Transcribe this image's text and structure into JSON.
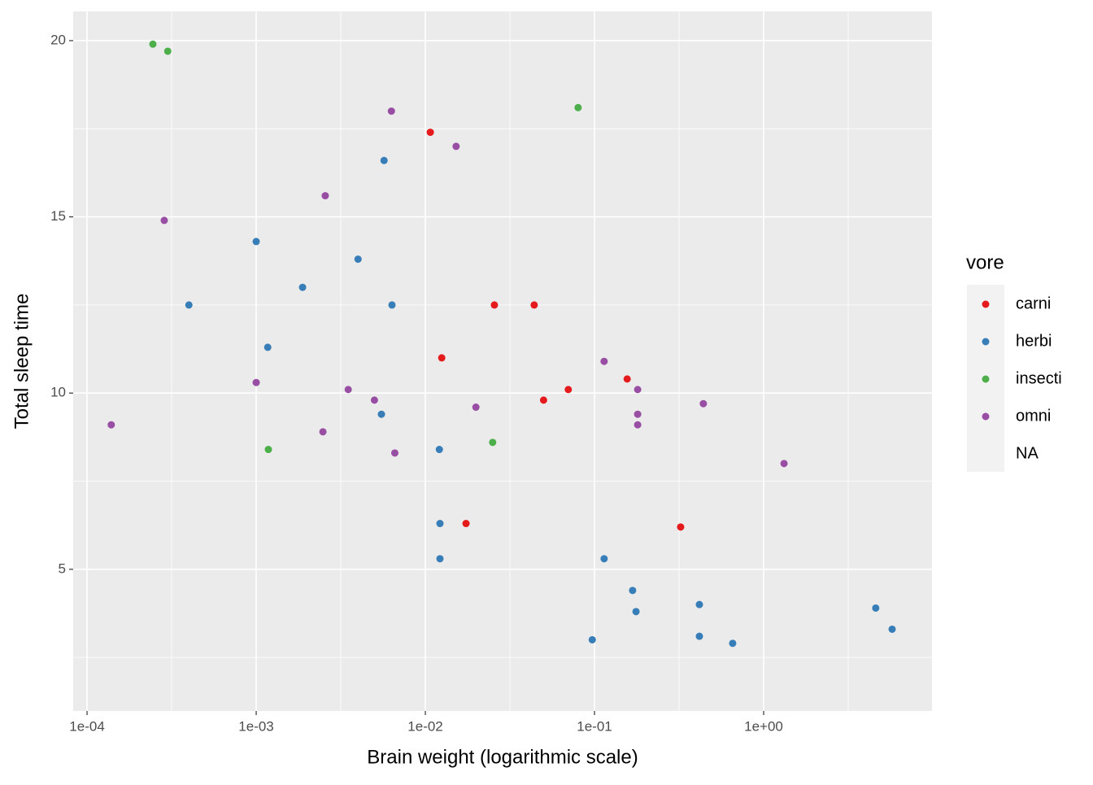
{
  "chart_data": {
    "type": "scatter",
    "x_label": "Brain weight (logarithmic scale)",
    "y_label": "Total sleep time",
    "log_x": true,
    "grid": true,
    "xlim": [
      8.28e-05,
      9.89
    ],
    "ylim": [
      0.98,
      20.83
    ],
    "xticks": [
      {
        "value": 0.0001,
        "label": "1e-04"
      },
      {
        "value": 0.001,
        "label": "1e-03"
      },
      {
        "value": 0.01,
        "label": "1e-02"
      },
      {
        "value": 0.1,
        "label": "1e-01"
      },
      {
        "value": 1,
        "label": "1e+00"
      }
    ],
    "yticks": [
      5,
      10,
      15,
      20
    ],
    "legend_title": "vore",
    "legend_position": "right",
    "series": [
      {
        "name": "carni",
        "color": "#E41A1C",
        "x": [
          0.0107,
          0.0256,
          0.044,
          0.0125,
          0.156,
          0.07,
          0.05,
          0.0174,
          0.323
        ],
        "values": [
          17.4,
          12.5,
          12.5,
          11.0,
          10.4,
          10.1,
          9.8,
          6.3,
          6.2
        ]
      },
      {
        "name": "herbi",
        "color": "#377EB8",
        "x": [
          0.0057,
          0.001,
          0.004,
          0.00188,
          0.0004,
          0.00635,
          0.00117,
          0.0055,
          0.0121,
          0.0122,
          0.0122,
          0.114,
          0.168,
          0.417,
          0.176,
          4.6,
          5.75,
          0.097,
          0.417,
          0.656
        ],
        "values": [
          16.6,
          14.3,
          13.8,
          13.0,
          12.5,
          12.5,
          11.3,
          9.4,
          8.4,
          6.3,
          5.3,
          5.3,
          4.4,
          4.0,
          3.8,
          3.9,
          3.3,
          3.0,
          3.1,
          2.9
        ]
      },
      {
        "name": "insecti",
        "color": "#4DAF4A",
        "x": [
          0.000245,
          0.0003,
          0.08,
          0.00118,
          0.025
        ],
        "values": [
          19.9,
          19.7,
          18.1,
          8.4,
          8.6
        ]
      },
      {
        "name": "omni",
        "color": "#984EA3",
        "x": [
          0.0063,
          0.0152,
          0.00256,
          0.000286,
          0.114,
          0.001,
          0.0035,
          0.18,
          0.005,
          0.44,
          0.0199,
          0.18,
          0.000139,
          0.18,
          0.00248,
          0.0066,
          1.32
        ],
        "values": [
          18.0,
          17.0,
          15.6,
          14.9,
          10.9,
          10.3,
          10.1,
          10.1,
          9.8,
          9.7,
          9.6,
          9.4,
          9.1,
          9.1,
          8.9,
          8.3,
          8.0
        ]
      },
      {
        "name": "NA",
        "x": [],
        "values": []
      }
    ]
  }
}
